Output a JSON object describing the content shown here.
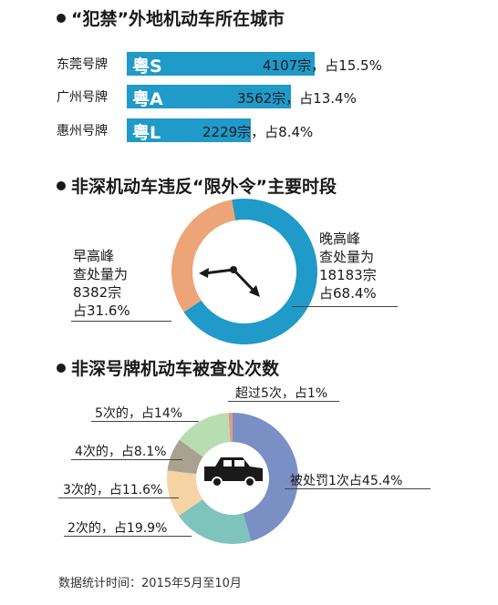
{
  "section1": {
    "title": "“犯禁”外地机动车所在城市",
    "rows": [
      {
        "name": "东莞号牌",
        "code": "粤S",
        "value_label": "4107宗，占15.5%",
        "value": 4107
      },
      {
        "name": "广州号牌",
        "code": "粤A",
        "value_label": "3562宗，占13.4%",
        "value": 3562
      },
      {
        "name": "惠州号牌",
        "code": "粤L",
        "value_label": "2229宗，占8.4%",
        "value": 2229
      }
    ]
  },
  "section2": {
    "title": "非深机动车违反“限外令”主要时段",
    "left_label": [
      "早高峰",
      "查处量为",
      "8382宗",
      "占31.6%"
    ],
    "right_label": [
      "晚高峰",
      "查处量为",
      "18183宗",
      "占68.4%"
    ]
  },
  "section3": {
    "title": "非深号牌机动车被查处次数",
    "labels": {
      "over5": "超过5次，占1%",
      "five": "5次的，占14%",
      "four": "4次的，占8.1%",
      "three": "3次的，占11.6%",
      "two": "2次的，占19.9%",
      "one": "被处罚1次占45.4%"
    }
  },
  "footer": "数据统计时间：2015年5月至10月",
  "chart_data": [
    {
      "type": "bar",
      "title": "“犯禁”外地机动车所在城市",
      "categories": [
        "东莞号牌",
        "广州号牌",
        "惠州号牌"
      ],
      "values": [
        4107,
        3562,
        2229
      ],
      "percentages": [
        15.5,
        13.4,
        8.4
      ]
    },
    {
      "type": "pie",
      "title": "非深机动车违反“限外令”主要时段",
      "labels": [
        "晚高峰",
        "早高峰"
      ],
      "values": [
        18183,
        8382
      ],
      "percentages": [
        68.4,
        31.6
      ],
      "colors": [
        "#1f9ac9",
        "#eda577"
      ]
    },
    {
      "type": "pie",
      "title": "非深号牌机动车被查处次数",
      "labels": [
        "被处罚1次",
        "2次的",
        "3次的",
        "4次的",
        "5次的",
        "超过5次"
      ],
      "percentages": [
        45.4,
        19.9,
        11.6,
        8.1,
        14,
        1
      ],
      "colors": [
        "#7a8fc4",
        "#7ec4bd",
        "#f5d3a3",
        "#a9a291",
        "#b8ddb0",
        "#e29a86"
      ]
    }
  ]
}
